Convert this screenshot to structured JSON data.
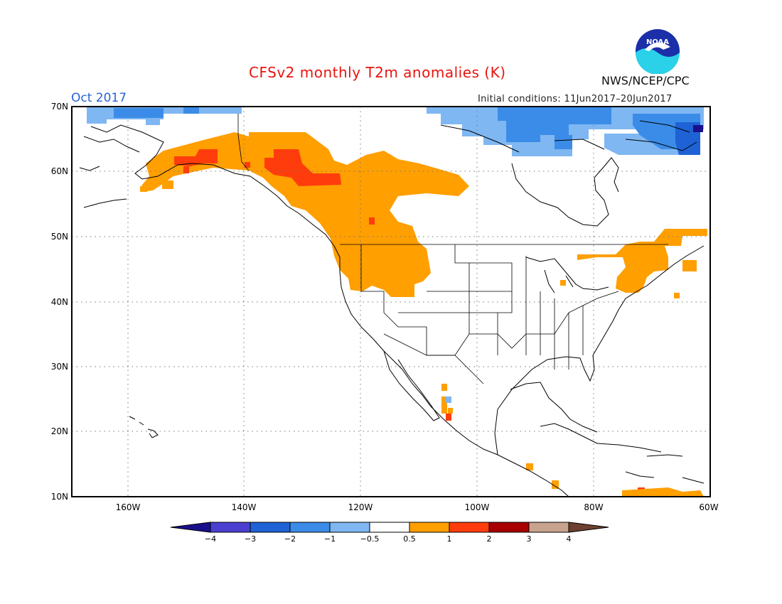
{
  "header": {
    "title": "CFSv2 monthly T2m anomalies (K)",
    "month": "Oct 2017",
    "initial_conditions": "Initial conditions: 11Jun2017–20Jun2017",
    "agency": "NWS/NCEP/CPC",
    "logo_icon": "noaa-logo-icon",
    "logo_text": "NOAA"
  },
  "map": {
    "lat_labels": [
      "70N",
      "60N",
      "50N",
      "40N",
      "30N",
      "20N",
      "10N"
    ],
    "lon_labels": [
      "160W",
      "140W",
      "120W",
      "100W",
      "80W",
      "60W"
    ],
    "grid_style": "dotted",
    "land_fill": "#ffffff",
    "coastline_color": "#000000"
  },
  "legend": {
    "tick_labels": [
      "−4",
      "−3",
      "−2",
      "−1",
      "−0.5",
      "0.5",
      "1",
      "2",
      "3",
      "4"
    ],
    "colors": [
      "#1a0f8c",
      "#4a3fd0",
      "#1e62d6",
      "#3b8ce8",
      "#7fb7f2",
      "#ffffff",
      "#ff9f00",
      "#ff3c0c",
      "#a80000",
      "#c8a48e",
      "#6e4030"
    ]
  }
}
